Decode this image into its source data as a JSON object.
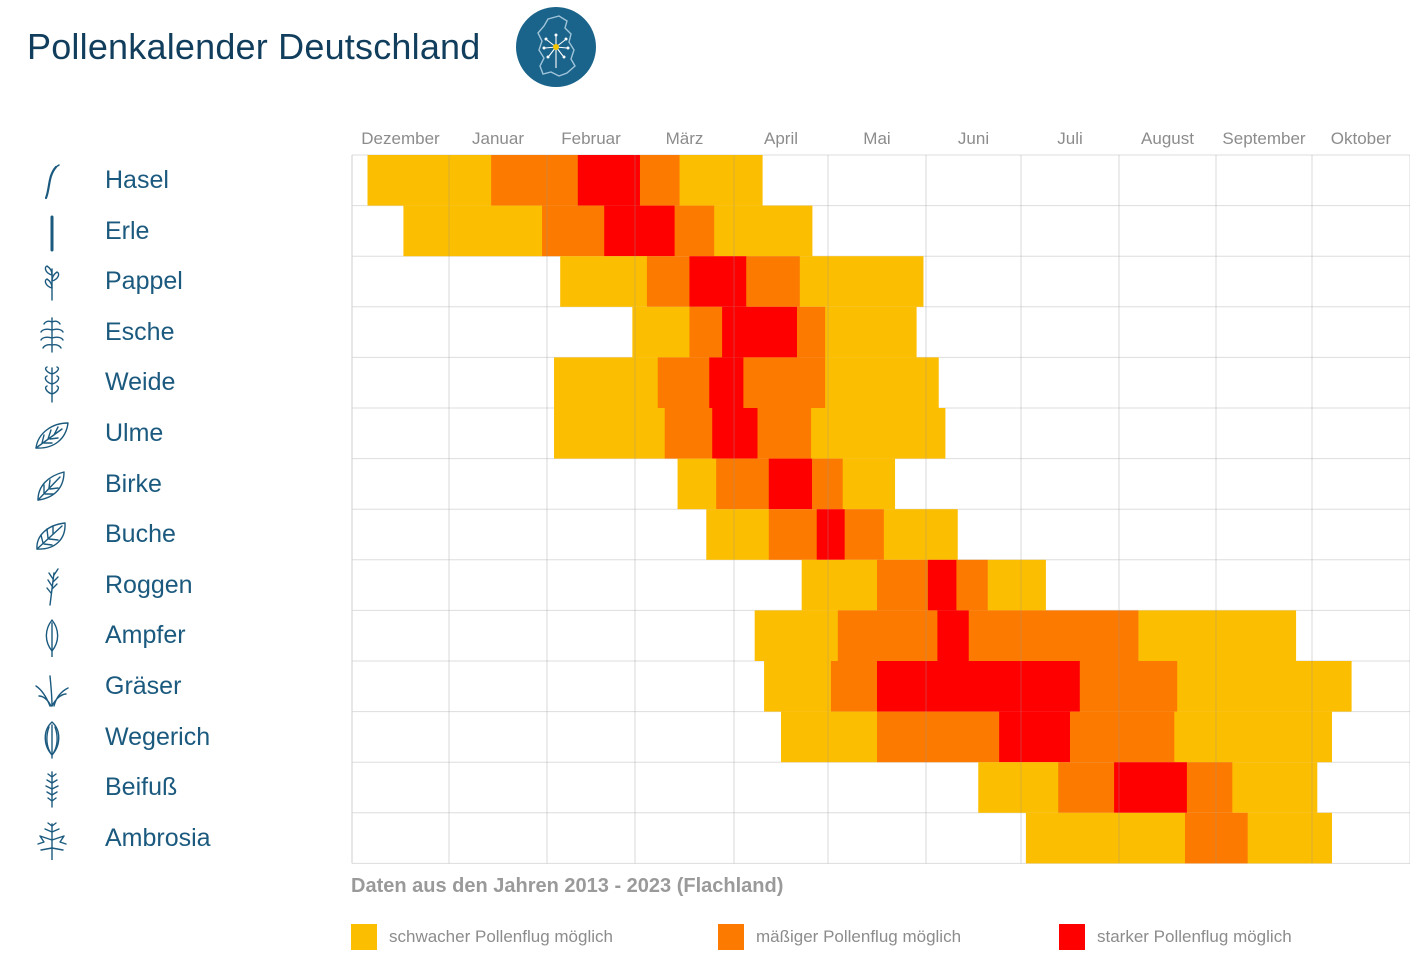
{
  "title": "Pollenkalender Deutschland",
  "logo_icon": "dandelion-germany-map-icon",
  "colors": {
    "low": "#fcbe00",
    "medium": "#fc7a00",
    "high": "#fe0000",
    "grid": "#dddddd",
    "title": "#113e5c",
    "plant_text": "#1b5a7e"
  },
  "source_note": "Daten aus den Jahren 2013 - 2023 (Flachland)",
  "legend": [
    {
      "level": "low",
      "label": "schwacher Pollenflug möglich"
    },
    {
      "level": "medium",
      "label": "mäßiger Pollenflug möglich"
    },
    {
      "level": "high",
      "label": "starker Pollenflug möglich"
    }
  ],
  "chart_data": {
    "type": "heatmap",
    "x_unit": "Monat (0 = Anfang Dezember, 11 = Ende Oktober)",
    "xlim": [
      0,
      11
    ],
    "months": [
      "Dezember",
      "Januar",
      "Februar",
      "März",
      "April",
      "Mai",
      "Juni",
      "Juli",
      "August",
      "September",
      "Oktober"
    ],
    "rows": [
      {
        "name": "Hasel",
        "icon": "hazel-catkin-icon",
        "segments": [
          {
            "level": "low",
            "start": 0.16,
            "end": 1.43
          },
          {
            "level": "medium",
            "start": 1.43,
            "end": 2.35
          },
          {
            "level": "high",
            "start": 2.35,
            "end": 3.05
          },
          {
            "level": "medium",
            "start": 3.05,
            "end": 3.45
          },
          {
            "level": "low",
            "start": 3.45,
            "end": 4.3
          }
        ]
      },
      {
        "name": "Erle",
        "icon": "alder-catkin-icon",
        "segments": [
          {
            "level": "low",
            "start": 0.53,
            "end": 1.95
          },
          {
            "level": "medium",
            "start": 1.95,
            "end": 2.65
          },
          {
            "level": "high",
            "start": 2.65,
            "end": 3.4
          },
          {
            "level": "medium",
            "start": 3.4,
            "end": 3.8
          },
          {
            "level": "low",
            "start": 3.8,
            "end": 4.83
          }
        ]
      },
      {
        "name": "Pappel",
        "icon": "poplar-twig-icon",
        "segments": [
          {
            "level": "low",
            "start": 2.15,
            "end": 3.12
          },
          {
            "level": "medium",
            "start": 3.12,
            "end": 3.55
          },
          {
            "level": "high",
            "start": 3.55,
            "end": 4.13
          },
          {
            "level": "medium",
            "start": 4.13,
            "end": 4.7
          },
          {
            "level": "low",
            "start": 4.7,
            "end": 5.97
          }
        ]
      },
      {
        "name": "Esche",
        "icon": "ash-leaf-icon",
        "segments": [
          {
            "level": "low",
            "start": 2.97,
            "end": 3.55
          },
          {
            "level": "medium",
            "start": 3.55,
            "end": 3.88
          },
          {
            "level": "high",
            "start": 3.88,
            "end": 4.67
          },
          {
            "level": "medium",
            "start": 4.67,
            "end": 4.97
          },
          {
            "level": "low",
            "start": 4.97,
            "end": 5.9
          }
        ]
      },
      {
        "name": "Weide",
        "icon": "willow-twig-icon",
        "segments": [
          {
            "level": "low",
            "start": 2.08,
            "end": 3.23
          },
          {
            "level": "medium",
            "start": 3.23,
            "end": 3.75
          },
          {
            "level": "high",
            "start": 3.75,
            "end": 4.1
          },
          {
            "level": "medium",
            "start": 4.1,
            "end": 4.97
          },
          {
            "level": "low",
            "start": 4.97,
            "end": 6.13
          }
        ]
      },
      {
        "name": "Ulme",
        "icon": "elm-leaf-icon",
        "segments": [
          {
            "level": "low",
            "start": 2.08,
            "end": 3.3
          },
          {
            "level": "medium",
            "start": 3.3,
            "end": 3.78
          },
          {
            "level": "high",
            "start": 3.78,
            "end": 4.25
          },
          {
            "level": "medium",
            "start": 4.25,
            "end": 4.82
          },
          {
            "level": "low",
            "start": 4.82,
            "end": 6.2
          }
        ]
      },
      {
        "name": "Birke",
        "icon": "birch-leaf-icon",
        "segments": [
          {
            "level": "low",
            "start": 3.43,
            "end": 3.82
          },
          {
            "level": "medium",
            "start": 3.82,
            "end": 4.37
          },
          {
            "level": "high",
            "start": 4.37,
            "end": 4.83
          },
          {
            "level": "medium",
            "start": 4.83,
            "end": 5.15
          },
          {
            "level": "low",
            "start": 5.15,
            "end": 5.68
          }
        ]
      },
      {
        "name": "Buche",
        "icon": "beech-leaf-icon",
        "segments": [
          {
            "level": "low",
            "start": 3.72,
            "end": 4.37
          },
          {
            "level": "medium",
            "start": 4.37,
            "end": 4.88
          },
          {
            "level": "high",
            "start": 4.88,
            "end": 5.17
          },
          {
            "level": "medium",
            "start": 5.17,
            "end": 5.57
          },
          {
            "level": "low",
            "start": 5.57,
            "end": 6.33
          }
        ]
      },
      {
        "name": "Roggen",
        "icon": "rye-ear-icon",
        "segments": [
          {
            "level": "low",
            "start": 4.72,
            "end": 5.5
          },
          {
            "level": "medium",
            "start": 5.5,
            "end": 6.02
          },
          {
            "level": "high",
            "start": 6.02,
            "end": 6.32
          },
          {
            "level": "medium",
            "start": 6.32,
            "end": 6.65
          },
          {
            "level": "low",
            "start": 6.65,
            "end": 7.25
          }
        ]
      },
      {
        "name": "Ampfer",
        "icon": "dock-leaf-icon",
        "segments": [
          {
            "level": "low",
            "start": 4.22,
            "end": 5.1
          },
          {
            "level": "medium",
            "start": 5.1,
            "end": 6.12
          },
          {
            "level": "high",
            "start": 6.12,
            "end": 6.45
          },
          {
            "level": "medium",
            "start": 6.45,
            "end": 8.2
          },
          {
            "level": "low",
            "start": 8.2,
            "end": 9.83
          }
        ]
      },
      {
        "name": "Gräser",
        "icon": "grass-icon",
        "segments": [
          {
            "level": "low",
            "start": 4.32,
            "end": 5.03
          },
          {
            "level": "medium",
            "start": 5.03,
            "end": 5.5
          },
          {
            "level": "high",
            "start": 5.5,
            "end": 7.6
          },
          {
            "level": "medium",
            "start": 7.6,
            "end": 8.6
          },
          {
            "level": "low",
            "start": 8.6,
            "end": 10.4
          }
        ]
      },
      {
        "name": "Wegerich",
        "icon": "plantain-leaf-icon",
        "segments": [
          {
            "level": "low",
            "start": 4.5,
            "end": 5.5
          },
          {
            "level": "medium",
            "start": 5.5,
            "end": 6.77
          },
          {
            "level": "high",
            "start": 6.77,
            "end": 7.5
          },
          {
            "level": "medium",
            "start": 7.5,
            "end": 8.57
          },
          {
            "level": "low",
            "start": 8.57,
            "end": 10.2
          }
        ]
      },
      {
        "name": "Beifuß",
        "icon": "mugwort-icon",
        "segments": [
          {
            "level": "low",
            "start": 6.55,
            "end": 7.38
          },
          {
            "level": "medium",
            "start": 7.38,
            "end": 7.95
          },
          {
            "level": "high",
            "start": 7.95,
            "end": 8.7
          },
          {
            "level": "medium",
            "start": 8.7,
            "end": 9.17
          },
          {
            "level": "low",
            "start": 9.17,
            "end": 10.05
          }
        ]
      },
      {
        "name": "Ambrosia",
        "icon": "ambrosia-icon",
        "segments": [
          {
            "level": "low",
            "start": 7.05,
            "end": 8.68
          },
          {
            "level": "medium",
            "start": 8.68,
            "end": 9.33
          },
          {
            "level": "low",
            "start": 9.33,
            "end": 10.2
          }
        ]
      }
    ]
  }
}
